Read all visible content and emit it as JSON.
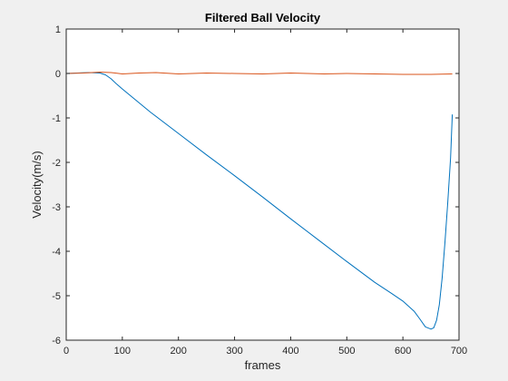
{
  "chart_data": {
    "type": "line",
    "title": "Filtered Ball Velocity",
    "xlabel": "frames",
    "ylabel": "Velocity(m/s)",
    "xlim": [
      0,
      700
    ],
    "ylim": [
      -6,
      1
    ],
    "xticks": [
      0,
      100,
      200,
      300,
      400,
      500,
      600,
      700
    ],
    "yticks": [
      -6,
      -5,
      -4,
      -3,
      -2,
      -1,
      0,
      1
    ],
    "grid": false,
    "colors": {
      "background": "#f0f0f0",
      "plot_area": "#ffffff",
      "axis": "#262626"
    },
    "series": [
      {
        "color": "#0072bd",
        "x": [
          0,
          20,
          40,
          60,
          70,
          80,
          90,
          100,
          150,
          200,
          250,
          300,
          350,
          400,
          450,
          500,
          550,
          580,
          600,
          620,
          630,
          640,
          650,
          655,
          660,
          665,
          670,
          675,
          680,
          685,
          688
        ],
        "y": [
          0.0,
          0.01,
          0.02,
          0.01,
          -0.03,
          -0.12,
          -0.24,
          -0.35,
          -0.87,
          -1.35,
          -1.83,
          -2.3,
          -2.78,
          -3.27,
          -3.75,
          -4.23,
          -4.7,
          -4.95,
          -5.12,
          -5.35,
          -5.52,
          -5.7,
          -5.75,
          -5.72,
          -5.55,
          -5.2,
          -4.6,
          -3.8,
          -2.9,
          -1.9,
          -0.92
        ]
      },
      {
        "color": "#d95319",
        "x": [
          0,
          30,
          60,
          80,
          100,
          130,
          160,
          200,
          250,
          300,
          350,
          400,
          430,
          460,
          500,
          550,
          600,
          650,
          688
        ],
        "y": [
          0.0,
          0.01,
          0.03,
          0.02,
          -0.01,
          0.01,
          0.02,
          -0.01,
          0.01,
          0.0,
          -0.01,
          0.01,
          0.0,
          -0.01,
          0.0,
          -0.01,
          -0.02,
          -0.02,
          -0.01
        ]
      }
    ]
  }
}
